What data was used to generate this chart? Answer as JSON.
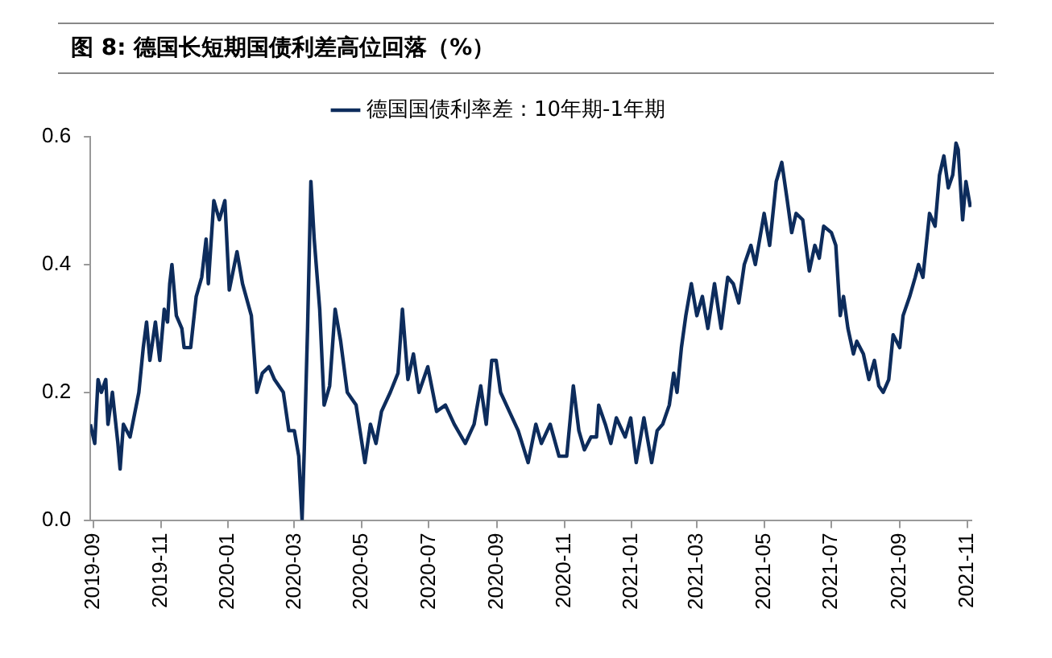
{
  "chart_data": {
    "type": "line",
    "title": "图 8:  德国长短期国债利差高位回落（%）",
    "x": [
      "2019-08-29",
      "2019-09-02",
      "2019-09-05",
      "2019-09-08",
      "2019-09-12",
      "2019-09-14",
      "2019-09-18",
      "2019-09-23",
      "2019-09-25",
      "2019-09-28",
      "2019-10-04",
      "2019-10-12",
      "2019-10-16",
      "2019-10-19",
      "2019-10-22",
      "2019-10-27",
      "2019-10-31",
      "2019-11-04",
      "2019-11-07",
      "2019-11-09",
      "2019-11-11",
      "2019-11-15",
      "2019-11-20",
      "2019-11-22",
      "2019-11-28",
      "2019-12-03",
      "2019-12-08",
      "2019-12-12",
      "2019-12-14",
      "2019-12-19",
      "2019-12-24",
      "2019-12-29",
      "2020-01-02",
      "2020-01-09",
      "2020-01-14",
      "2020-01-22",
      "2020-01-27",
      "2020-02-01",
      "2020-02-07",
      "2020-02-12",
      "2020-02-20",
      "2020-02-25",
      "2020-03-01",
      "2020-03-05",
      "2020-03-08",
      "2020-03-10",
      "2020-03-13",
      "2020-03-16",
      "2020-03-19",
      "2020-03-24",
      "2020-03-28",
      "2020-04-02",
      "2020-04-07",
      "2020-04-12",
      "2020-04-18",
      "2020-04-26",
      "2020-05-04",
      "2020-05-09",
      "2020-05-14",
      "2020-05-19",
      "2020-05-27",
      "2020-06-03",
      "2020-06-07",
      "2020-06-12",
      "2020-06-17",
      "2020-06-22",
      "2020-06-30",
      "2020-07-08",
      "2020-07-16",
      "2020-07-24",
      "2020-08-03",
      "2020-08-11",
      "2020-08-17",
      "2020-08-22",
      "2020-08-27",
      "2020-08-31",
      "2020-09-04",
      "2020-09-12",
      "2020-09-20",
      "2020-09-29",
      "2020-10-06",
      "2020-10-11",
      "2020-10-19",
      "2020-10-27",
      "2020-11-03",
      "2020-11-09",
      "2020-11-14",
      "2020-11-19",
      "2020-11-25",
      "2020-11-30",
      "2020-12-02",
      "2020-12-08",
      "2020-12-13",
      "2020-12-18",
      "2020-12-26",
      "2020-12-31",
      "2021-01-05",
      "2021-01-12",
      "2021-01-19",
      "2021-01-24",
      "2021-01-29",
      "2021-02-04",
      "2021-02-08",
      "2021-02-11",
      "2021-02-15",
      "2021-02-19",
      "2021-02-24",
      "2021-03-01",
      "2021-03-06",
      "2021-03-11",
      "2021-03-17",
      "2021-03-23",
      "2021-03-29",
      "2021-04-03",
      "2021-04-08",
      "2021-04-13",
      "2021-04-19",
      "2021-04-23",
      "2021-05-01",
      "2021-05-06",
      "2021-05-12",
      "2021-05-17",
      "2021-05-22",
      "2021-05-26",
      "2021-05-30",
      "2021-06-05",
      "2021-06-11",
      "2021-06-16",
      "2021-06-20",
      "2021-06-24",
      "2021-07-01",
      "2021-07-05",
      "2021-07-09",
      "2021-07-12",
      "2021-07-16",
      "2021-07-21",
      "2021-07-24",
      "2021-07-30",
      "2021-08-04",
      "2021-08-09",
      "2021-08-13",
      "2021-08-17",
      "2021-08-22",
      "2021-08-26",
      "2021-09-01",
      "2021-09-04",
      "2021-09-10",
      "2021-09-15",
      "2021-09-18",
      "2021-09-22",
      "2021-09-25",
      "2021-09-28",
      "2021-10-03",
      "2021-10-07",
      "2021-10-11",
      "2021-10-15",
      "2021-10-19",
      "2021-10-22",
      "2021-10-24",
      "2021-10-28",
      "2021-10-31",
      "2021-11-04"
    ],
    "series": [
      {
        "name": "德国国债利率差：10年期-1年期",
        "color": "#0d2c5c",
        "values": [
          0.15,
          0.12,
          0.22,
          0.2,
          0.22,
          0.15,
          0.2,
          0.12,
          0.08,
          0.15,
          0.13,
          0.2,
          0.27,
          0.31,
          0.25,
          0.31,
          0.25,
          0.33,
          0.31,
          0.37,
          0.4,
          0.32,
          0.3,
          0.27,
          0.27,
          0.35,
          0.38,
          0.44,
          0.37,
          0.5,
          0.47,
          0.5,
          0.36,
          0.42,
          0.37,
          0.32,
          0.2,
          0.23,
          0.24,
          0.22,
          0.2,
          0.14,
          0.14,
          0.1,
          0.0,
          0.11,
          0.3,
          0.53,
          0.44,
          0.33,
          0.18,
          0.21,
          0.33,
          0.28,
          0.2,
          0.18,
          0.09,
          0.15,
          0.12,
          0.17,
          0.2,
          0.23,
          0.33,
          0.22,
          0.26,
          0.2,
          0.24,
          0.17,
          0.18,
          0.15,
          0.12,
          0.15,
          0.21,
          0.15,
          0.25,
          0.25,
          0.2,
          0.17,
          0.14,
          0.09,
          0.15,
          0.12,
          0.15,
          0.1,
          0.1,
          0.21,
          0.14,
          0.11,
          0.13,
          0.13,
          0.18,
          0.15,
          0.12,
          0.16,
          0.13,
          0.16,
          0.09,
          0.16,
          0.09,
          0.14,
          0.15,
          0.18,
          0.23,
          0.2,
          0.27,
          0.32,
          0.37,
          0.32,
          0.35,
          0.3,
          0.37,
          0.3,
          0.38,
          0.37,
          0.34,
          0.4,
          0.43,
          0.4,
          0.48,
          0.43,
          0.53,
          0.56,
          0.5,
          0.45,
          0.48,
          0.47,
          0.39,
          0.43,
          0.41,
          0.46,
          0.45,
          0.43,
          0.32,
          0.35,
          0.3,
          0.26,
          0.28,
          0.26,
          0.22,
          0.25,
          0.21,
          0.2,
          0.22,
          0.29,
          0.27,
          0.32,
          0.35,
          0.38,
          0.4,
          0.38,
          0.43,
          0.48,
          0.46,
          0.54,
          0.57,
          0.52,
          0.54,
          0.59,
          0.58,
          0.47,
          0.53,
          0.49
        ]
      }
    ],
    "xlim": [
      "2019-08-29",
      "2021-11-05"
    ],
    "xticks": [
      "2019-09",
      "2019-11",
      "2020-01",
      "2020-03",
      "2020-05",
      "2020-07",
      "2020-09",
      "2020-11",
      "2021-01",
      "2021-03",
      "2021-05",
      "2021-07",
      "2021-09",
      "2021-11"
    ],
    "ylim": [
      0,
      0.6
    ],
    "yticks": [
      {
        "value": 0,
        "label": "0.0"
      },
      {
        "value": 0.2,
        "label": "0.2"
      },
      {
        "value": 0.4,
        "label": "0.4"
      },
      {
        "value": 0.6,
        "label": "0.6"
      }
    ],
    "grid": false,
    "legend": "top",
    "marker": "none",
    "line_style": "solid"
  }
}
